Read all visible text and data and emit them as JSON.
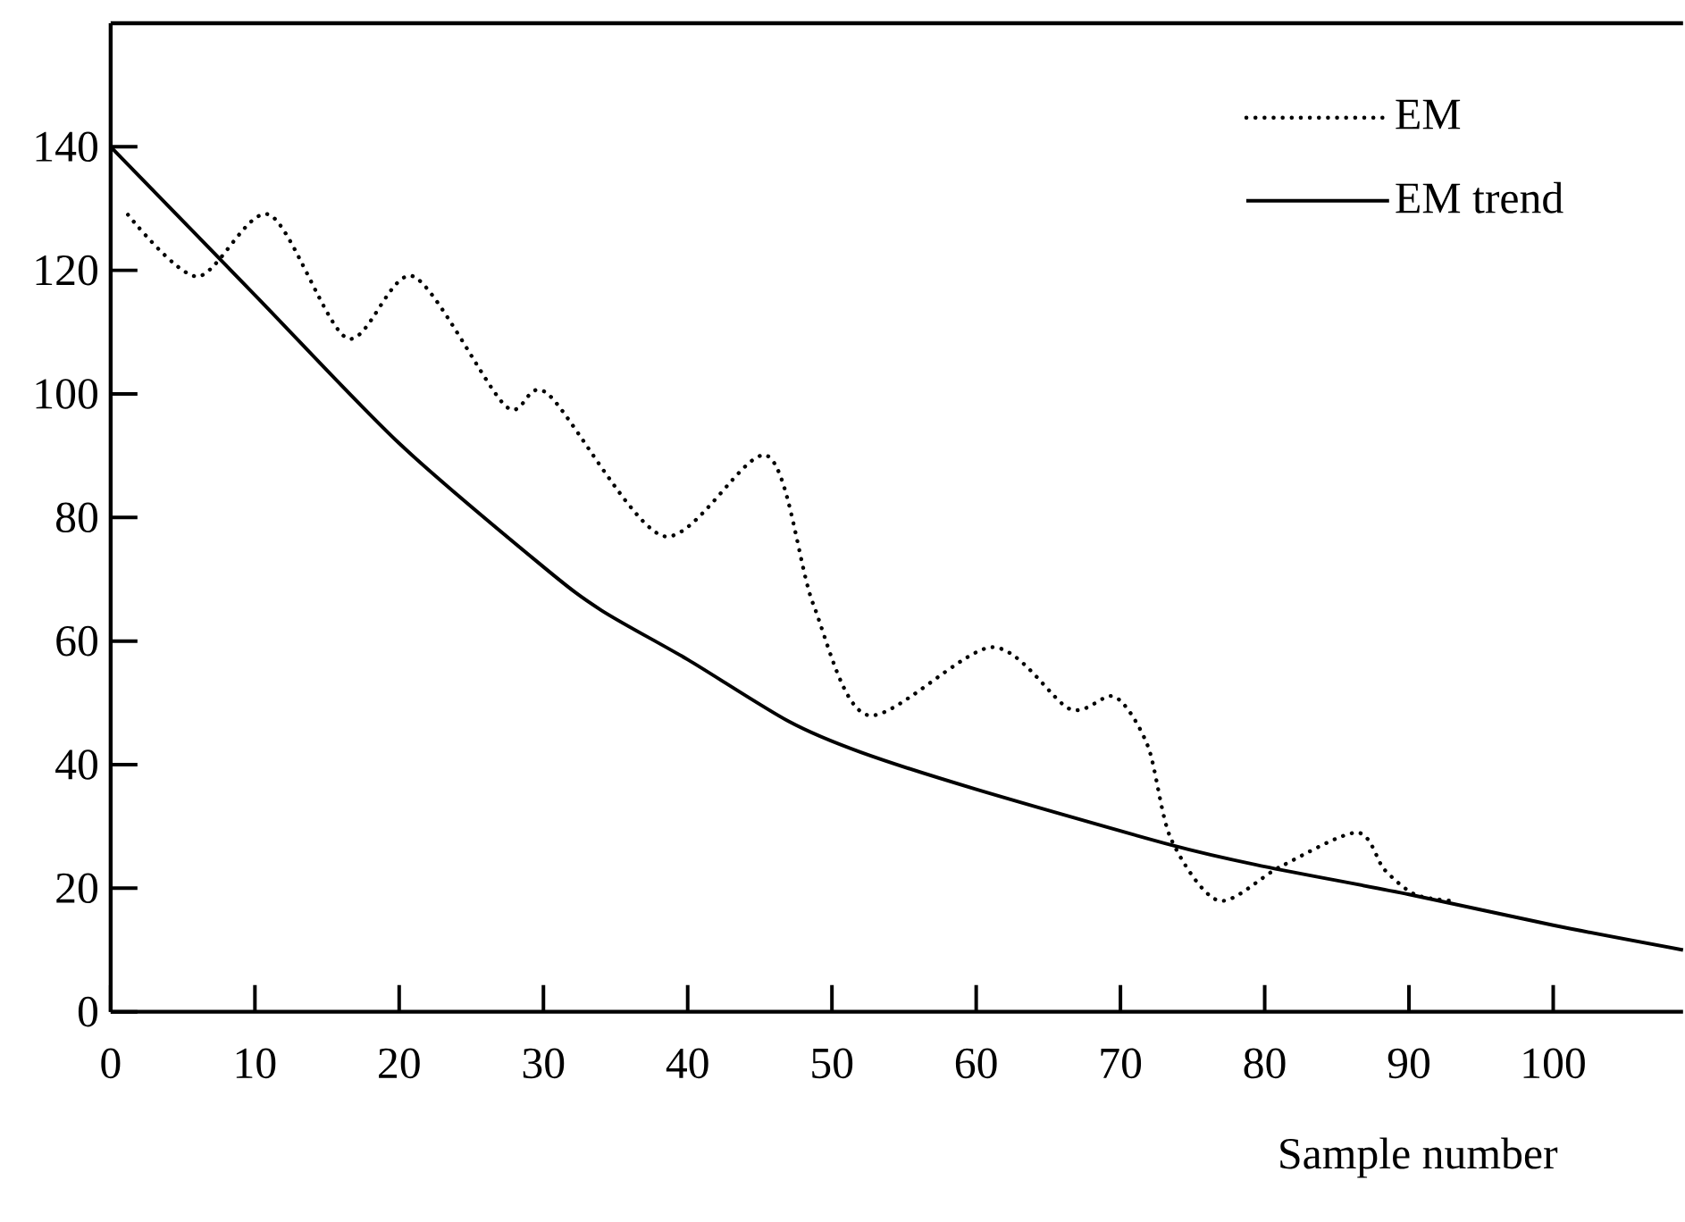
{
  "chart_data": {
    "type": "line",
    "xlabel": "Sample number",
    "xlim": [
      0,
      109
    ],
    "ylim": [
      0,
      160
    ],
    "xticks": [
      0,
      10,
      20,
      30,
      40,
      50,
      60,
      70,
      80,
      90,
      100
    ],
    "yticks": [
      0,
      20,
      40,
      60,
      80,
      100,
      120,
      140
    ],
    "legend": "top right",
    "series": [
      {
        "name": "EM",
        "color": "#000000",
        "line_style": "dotted",
        "x": [
          1.2,
          6,
          11,
          16.4,
          21,
          27.4,
          30.3,
          38.3,
          45.5,
          48.7,
          52.5,
          61.1,
          66.5,
          69.6,
          71.9,
          73.5,
          76.8,
          81.1,
          86.4,
          88.3,
          90.4,
          92.8
        ],
        "values": [
          129,
          119,
          129,
          109,
          119,
          98,
          100,
          77,
          90,
          66,
          48,
          59,
          49,
          51,
          43,
          28,
          18,
          23.5,
          29,
          23,
          19,
          18
        ]
      },
      {
        "name": "EM trend",
        "color": "#000000",
        "line_style": "solid",
        "x": [
          0,
          10,
          20,
          30,
          34,
          40,
          47,
          52,
          60,
          73.5,
          80,
          90,
          100,
          109
        ],
        "values": [
          140,
          116,
          92,
          72,
          65,
          57,
          47,
          42,
          36,
          27,
          23.5,
          19,
          14,
          10
        ]
      }
    ]
  }
}
